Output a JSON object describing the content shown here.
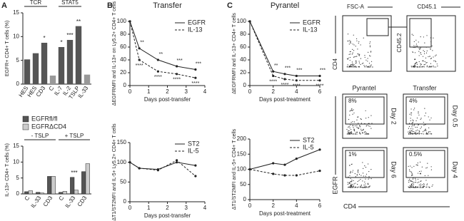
{
  "panels": [
    "A",
    "B",
    "C"
  ],
  "chart_data": [
    {
      "type": "bar",
      "ylabel": "EGFR+ CD4+ T cells (%)",
      "categories": [
        "HES",
        "HES",
        "CD3",
        "C",
        "IL-7",
        "IL-2",
        "TSLP",
        "IL-33"
      ],
      "values": [
        5.2,
        6.5,
        8.7,
        1.8,
        7.8,
        9.3,
        12.2,
        2.0
      ],
      "colors": [
        "#555555",
        "#555555",
        "#555555",
        "#999999",
        "#555555",
        "#555555",
        "#555555",
        "#999999"
      ],
      "sig": [
        null,
        null,
        "*",
        null,
        "*",
        "***",
        "**",
        null
      ],
      "groups": [
        {
          "label": "TCR",
          "from": 0,
          "to": 2
        },
        {
          "label": "STAT5",
          "from": 4,
          "to": 6
        }
      ],
      "ylim": [
        0,
        15
      ],
      "yticks": [
        0,
        5,
        10,
        15
      ]
    },
    {
      "type": "bar",
      "ylabel": "IL-13+ CD4+ T cells (%)",
      "categories": [
        "C",
        "IL-33",
        "CD3",
        "C",
        "IL-33",
        "CD3"
      ],
      "series": [
        {
          "name": "EGFRfl/fl",
          "color": "#555555",
          "values": [
            0.7,
            0.5,
            5.5,
            0.5,
            5.2,
            7.0
          ]
        },
        {
          "name": "EGFRΔCD4",
          "color": "#cccccc",
          "values": [
            1.0,
            0.3,
            5.5,
            0.8,
            1.2,
            9.5
          ]
        }
      ],
      "sig": [
        null,
        null,
        null,
        null,
        "***",
        null
      ],
      "groups": [
        {
          "label": "- TSLP",
          "from": 0,
          "to": 2
        },
        {
          "label": "+ TSLP",
          "from": 3,
          "to": 5
        }
      ],
      "ylim": [
        0,
        15
      ],
      "yticks": [
        0,
        5,
        10,
        15
      ]
    },
    {
      "type": "line",
      "title": "Transfer",
      "ylabel": "ΔEGFRMFI and IL-13+ on Ly5.2+ CD4+ T cells",
      "xlabel": "Days post-transfer",
      "x": [
        0,
        0.5,
        1.5,
        2.5,
        3.5
      ],
      "series": [
        {
          "name": "EGFR",
          "color": "#222222",
          "dash": false,
          "values": [
            100,
            58,
            40,
            30,
            25
          ],
          "sig": [
            null,
            "**",
            "**",
            "***",
            "***"
          ]
        },
        {
          "name": "IL-13",
          "color": "#222222",
          "dash": true,
          "values": [
            100,
            40,
            22,
            18,
            12
          ],
          "sig": [
            null,
            "****",
            "****",
            "****",
            "****"
          ]
        }
      ],
      "xlim": [
        0,
        4
      ],
      "xticks": [
        0,
        1,
        2,
        3,
        4
      ],
      "ylim": [
        0,
        100
      ],
      "yticks": [
        0,
        20,
        40,
        60,
        80,
        100
      ],
      "legend": "upper right"
    },
    {
      "type": "line",
      "ylabel": "ΔT1/ST2MFI and IL-5+ Ly5.2+ CD4+ T cells",
      "xlabel": "Days post-transfer",
      "x": [
        0,
        0.5,
        1.5,
        2.5,
        3.5
      ],
      "series": [
        {
          "name": "ST2",
          "color": "#222222",
          "dash": false,
          "values": [
            100,
            85,
            82,
            100,
            92
          ]
        },
        {
          "name": "IL-5",
          "color": "#222222",
          "dash": true,
          "values": [
            100,
            85,
            80,
            105,
            65
          ]
        }
      ],
      "xlim": [
        0,
        4
      ],
      "xticks": [
        0,
        1,
        2,
        3,
        4
      ],
      "ylim": [
        0,
        150
      ],
      "yticks": [
        0,
        50,
        100,
        150
      ],
      "legend": "upper right"
    },
    {
      "type": "line",
      "title": "Pyrantel",
      "ylabel": "ΔEGFRMFI and IL-13+ CD4+ T cells",
      "xlabel": "Days post-treatment",
      "x": [
        0,
        2,
        3,
        4,
        6
      ],
      "series": [
        {
          "name": "EGFR",
          "color": "#222222",
          "dash": false,
          "values": [
            100,
            22,
            18,
            15,
            15
          ],
          "sig": [
            null,
            "**",
            "***",
            "***",
            "***"
          ]
        },
        {
          "name": "IL-13",
          "color": "#222222",
          "dash": true,
          "values": [
            100,
            15,
            10,
            8,
            8
          ],
          "sig": [
            null,
            "****",
            "****",
            "****",
            "****"
          ]
        }
      ],
      "xlim": [
        0,
        6
      ],
      "xticks": [
        0,
        2,
        4,
        6
      ],
      "ylim": [
        0,
        100
      ],
      "yticks": [
        0,
        20,
        40,
        60,
        80,
        100
      ],
      "legend": "upper right"
    },
    {
      "type": "line",
      "ylabel": "ΔT1/ST2MFI and IL-5+ CD4+ T cells",
      "xlabel": "Days post-treatment",
      "x": [
        0,
        2,
        3,
        4,
        6
      ],
      "series": [
        {
          "name": "ST2",
          "color": "#222222",
          "dash": false,
          "values": [
            100,
            120,
            115,
            135,
            165
          ]
        },
        {
          "name": "IL-5",
          "color": "#222222",
          "dash": true,
          "values": [
            100,
            85,
            80,
            80,
            95
          ]
        }
      ],
      "xlim": [
        0,
        6
      ],
      "xticks": [
        0,
        2,
        4,
        6
      ],
      "ylim": [
        0,
        200
      ],
      "yticks": [
        0,
        50,
        100,
        150,
        200
      ],
      "legend": "upper right"
    }
  ],
  "flow": {
    "fsc": "FSC-A",
    "cd45_1": "CD45.1",
    "cd4_y": "CD4",
    "cd45_2": "CD45.2",
    "col1": "Pyrantel",
    "col2": "Transfer",
    "rows": [
      "Day 2",
      "Day 0.5",
      "Day 6",
      "Day 4"
    ],
    "percents": [
      "8%",
      "4%",
      "1%",
      "0.5%"
    ],
    "egfr": "EGFR",
    "cd4_x": "CD4"
  }
}
